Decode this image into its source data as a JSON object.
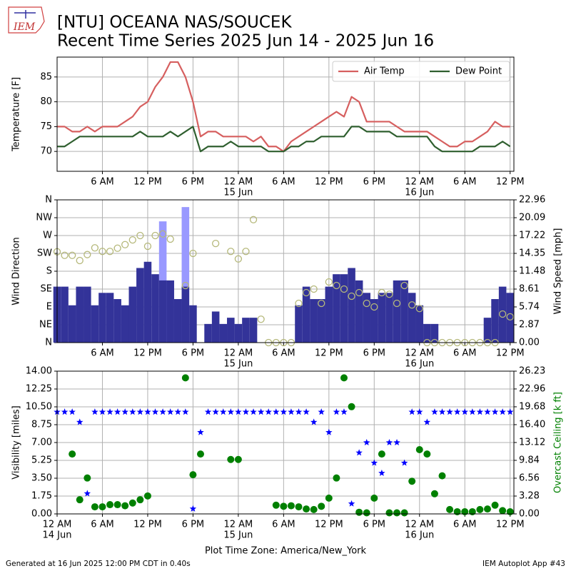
{
  "header": {
    "logo": "IEM",
    "title": "[NTU] OCEANA NAS/SOUCEK",
    "subtitle": "Recent Time Series 2025 Jun 14 - 2025 Jun 16"
  },
  "footer": {
    "left": "Generated at 16 Jun 2025 12:00 PM CDT in 0.40s",
    "right": "IEM Autoplot App #43"
  },
  "chart_data": [
    {
      "type": "line",
      "ylabel": "Temperature [F]",
      "xlim": [
        0,
        60.5
      ],
      "xticks": [
        {
          "value": 6,
          "label": "6 AM"
        },
        {
          "value": 12,
          "label": "12 PM"
        },
        {
          "value": 18,
          "label": "6 PM"
        },
        {
          "value": 24,
          "label": "12 AM",
          "sublabel": "15 Jun"
        },
        {
          "value": 30,
          "label": "6 AM"
        },
        {
          "value": 36,
          "label": "12 PM"
        },
        {
          "value": 42,
          "label": "6 PM"
        },
        {
          "value": 48,
          "label": "12 AM",
          "sublabel": "16 Jun"
        },
        {
          "value": 54,
          "label": "6 AM"
        },
        {
          "value": 60,
          "label": "12 PM"
        }
      ],
      "ylim": [
        66,
        89
      ],
      "yticks": [
        70,
        75,
        80,
        85
      ],
      "grid": true,
      "legend": "upper right",
      "x": [
        0,
        1,
        2,
        3,
        4,
        5,
        6,
        7,
        8,
        9,
        10,
        11,
        12,
        13,
        14,
        15,
        16,
        17,
        18,
        19,
        20,
        21,
        22,
        23,
        24,
        25,
        26,
        27,
        28,
        29,
        30,
        31,
        32,
        33,
        34,
        35,
        36,
        37,
        38,
        39,
        40,
        41,
        42,
        43,
        44,
        45,
        46,
        47,
        48,
        49,
        50,
        51,
        52,
        53,
        54,
        55,
        56,
        57,
        58,
        59,
        60
      ],
      "series": [
        {
          "name": "Air Temp",
          "color": "#d65f5f",
          "kind": "line",
          "values": [
            75,
            75,
            74,
            74,
            75,
            74,
            75,
            75,
            75,
            76,
            77,
            79,
            80,
            83,
            85,
            88,
            88,
            85,
            80,
            73,
            74,
            74,
            73,
            73,
            73,
            73,
            72,
            73,
            71,
            71,
            70,
            72,
            73,
            74,
            75,
            76,
            77,
            78,
            77,
            81,
            80,
            76,
            76,
            76,
            76,
            75,
            74,
            74,
            74,
            74,
            73,
            72,
            71,
            71,
            72,
            72,
            73,
            74,
            76,
            75,
            75
          ]
        },
        {
          "name": "Dew Point",
          "color": "#2f5f2f",
          "kind": "line",
          "values": [
            71,
            71,
            72,
            73,
            73,
            73,
            73,
            73,
            73,
            73,
            73,
            74,
            73,
            73,
            73,
            74,
            73,
            74,
            75,
            70,
            71,
            71,
            71,
            72,
            71,
            71,
            71,
            71,
            70,
            70,
            70,
            71,
            71,
            72,
            72,
            73,
            73,
            73,
            73,
            75,
            75,
            74,
            74,
            74,
            74,
            73,
            73,
            73,
            73,
            73,
            71,
            70,
            70,
            70,
            70,
            70,
            71,
            71,
            71,
            72,
            71
          ]
        }
      ]
    },
    {
      "type": "combo",
      "ylabel": "Wind Direction",
      "y2label": "Wind Speed [mph]",
      "xlim": [
        0,
        60.5
      ],
      "xticks": [
        {
          "value": 6,
          "label": "6 AM"
        },
        {
          "value": 12,
          "label": "12 PM"
        },
        {
          "value": 18,
          "label": "6 PM"
        },
        {
          "value": 24,
          "label": "12 AM",
          "sublabel": "15 Jun"
        },
        {
          "value": 30,
          "label": "6 AM"
        },
        {
          "value": 36,
          "label": "12 PM"
        },
        {
          "value": 42,
          "label": "6 PM"
        },
        {
          "value": 48,
          "label": "12 AM",
          "sublabel": "16 Jun"
        },
        {
          "value": 54,
          "label": "6 AM"
        },
        {
          "value": 60,
          "label": "12 PM"
        }
      ],
      "ylim": [
        0,
        360
      ],
      "yticks": [
        {
          "value": 0,
          "label": "N"
        },
        {
          "value": 45,
          "label": "NE"
        },
        {
          "value": 90,
          "label": "E"
        },
        {
          "value": 135,
          "label": "SE"
        },
        {
          "value": 180,
          "label": "S"
        },
        {
          "value": 225,
          "label": "SW"
        },
        {
          "value": 270,
          "label": "W"
        },
        {
          "value": 315,
          "label": "NW"
        },
        {
          "value": 360,
          "label": "N"
        }
      ],
      "y2lim": [
        0,
        22.96
      ],
      "y2ticks": [
        {
          "value": 0,
          "label": "0.00"
        },
        2.87,
        5.74,
        8.61,
        11.48,
        14.35,
        17.22,
        20.09,
        22.96
      ],
      "grid": true,
      "x": [
        0,
        1,
        2,
        3,
        4,
        5,
        6,
        7,
        8,
        9,
        10,
        11,
        12,
        13,
        14,
        15,
        16,
        17,
        18,
        19,
        20,
        21,
        22,
        23,
        24,
        25,
        26,
        27,
        28,
        29,
        30,
        31,
        32,
        33,
        34,
        35,
        36,
        37,
        38,
        39,
        40,
        41,
        42,
        43,
        44,
        45,
        46,
        47,
        48,
        49,
        50,
        51,
        52,
        53,
        54,
        55,
        56,
        57,
        58,
        59,
        60
      ],
      "series": [
        {
          "color": "#9999ff",
          "kind": "bar",
          "axis": "y2",
          "values": [
            null,
            null,
            null,
            null,
            null,
            null,
            null,
            null,
            null,
            null,
            null,
            null,
            null,
            null,
            19.5,
            null,
            null,
            21.8,
            null,
            null,
            null,
            null,
            null,
            null,
            null,
            null,
            null,
            null,
            null,
            null,
            null,
            null,
            null,
            null,
            null,
            null,
            null,
            null,
            null,
            null,
            null,
            null,
            null,
            null,
            null,
            null,
            null,
            null,
            null,
            null,
            null,
            null,
            null,
            null,
            null,
            null,
            null,
            null,
            null,
            null,
            null
          ]
        },
        {
          "color": "#333399",
          "kind": "bar",
          "axis": "y2",
          "values": [
            9,
            9,
            6,
            9,
            9,
            6,
            8,
            8,
            7,
            6,
            9,
            12,
            13,
            11,
            10,
            10,
            7,
            9,
            6,
            0,
            3,
            5,
            3,
            4,
            3,
            4,
            4,
            0,
            0,
            0,
            0,
            0,
            6,
            9,
            7,
            7,
            9,
            11,
            11,
            12,
            10,
            8,
            7,
            8,
            8,
            10,
            10,
            8,
            6,
            3,
            3,
            0,
            0,
            0,
            0,
            0,
            0,
            4,
            7,
            9,
            8
          ]
        },
        {
          "color": "#b5b87a",
          "kind": "scatter",
          "marker": "circle-open",
          "values": [
            229,
            220,
            220,
            207,
            222,
            239,
            230,
            230,
            238,
            247,
            259,
            270,
            243,
            270,
            274,
            261,
            null,
            144,
            225,
            null,
            null,
            250,
            null,
            230,
            211,
            230,
            310,
            59,
            0,
            0,
            0,
            0,
            99,
            126,
            135,
            99,
            153,
            144,
            135,
            117,
            126,
            99,
            90,
            126,
            122,
            99,
            144,
            95,
            86,
            0,
            0,
            0,
            0,
            0,
            0,
            0,
            0,
            0,
            0,
            72,
            65
          ]
        }
      ]
    },
    {
      "type": "combo",
      "ylabel": "Visibility [miles]",
      "y2label": "Overcast Ceiling [k ft]",
      "xlabel": "Plot Time Zone: America/New_York",
      "xlim": [
        0,
        60.5
      ],
      "xticks": [
        {
          "value": 0,
          "label": "12 AM",
          "sublabel": "14 Jun"
        },
        {
          "value": 6,
          "label": "6 AM"
        },
        {
          "value": 12,
          "label": "12 PM"
        },
        {
          "value": 18,
          "label": "6 PM"
        },
        {
          "value": 24,
          "label": "12 AM",
          "sublabel": "15 Jun"
        },
        {
          "value": 30,
          "label": "6 AM"
        },
        {
          "value": 36,
          "label": "12 PM"
        },
        {
          "value": 42,
          "label": "6 PM"
        },
        {
          "value": 48,
          "label": "12 AM",
          "sublabel": "16 Jun"
        },
        {
          "value": 54,
          "label": "6 AM"
        },
        {
          "value": 60,
          "label": "12 PM"
        }
      ],
      "ylim": [
        0,
        14
      ],
      "yticks": [
        {
          "value": 0,
          "label": "0.00"
        },
        1.75,
        {
          "value": 3.5,
          "label": "3.50"
        },
        5.25,
        {
          "value": 7,
          "label": "7.00"
        },
        8.75,
        {
          "value": 10.5,
          "label": "10.50"
        },
        12.25,
        {
          "value": 14,
          "label": "14.00"
        }
      ],
      "y2lim": [
        0,
        26.23
      ],
      "y2ticks": [
        {
          "value": 0,
          "label": "0.00"
        },
        3.28,
        6.56,
        9.84,
        13.12,
        {
          "value": 16.4,
          "label": "16.40"
        },
        19.68,
        22.96,
        26.23
      ],
      "y2color": "#008000",
      "grid": true,
      "x": [
        0,
        1,
        2,
        3,
        4,
        5,
        6,
        7,
        8,
        9,
        10,
        11,
        12,
        13,
        14,
        15,
        16,
        17,
        18,
        19,
        20,
        21,
        22,
        23,
        24,
        25,
        26,
        27,
        28,
        29,
        30,
        31,
        32,
        33,
        34,
        35,
        36,
        37,
        38,
        39,
        40,
        41,
        42,
        43,
        44,
        45,
        46,
        47,
        48,
        49,
        50,
        51,
        52,
        53,
        54,
        55,
        56,
        57,
        58,
        59,
        60
      ],
      "series": [
        {
          "color": "#0000ff",
          "kind": "scatter",
          "marker": "star",
          "values": [
            10,
            10,
            10,
            9,
            2,
            10,
            10,
            10,
            10,
            10,
            10,
            10,
            10,
            10,
            10,
            10,
            10,
            10,
            0.5,
            8,
            10,
            10,
            10,
            10,
            10,
            10,
            10,
            10,
            10,
            10,
            10,
            10,
            10,
            10,
            9,
            10,
            8,
            10,
            10,
            1,
            6,
            7,
            5,
            4,
            7,
            7,
            5,
            10,
            10,
            9,
            10,
            10,
            10,
            10,
            10,
            10,
            10,
            10,
            10,
            10,
            10
          ]
        },
        {
          "color": "#008000",
          "kind": "scatter",
          "marker": "circle",
          "axis": "y2",
          "values": [
            null,
            null,
            11.0,
            2.6,
            6.6,
            1.3,
            1.3,
            1.7,
            1.7,
            1.5,
            2.0,
            2.6,
            3.3,
            null,
            null,
            null,
            null,
            25.0,
            7.2,
            11.0,
            null,
            null,
            null,
            10.0,
            10.0,
            null,
            null,
            null,
            null,
            1.6,
            1.4,
            1.5,
            1.3,
            0.9,
            0.8,
            1.4,
            2.9,
            6.6,
            25.0,
            19.7,
            0.3,
            0.2,
            2.9,
            11.0,
            0.2,
            0.2,
            0.2,
            6.0,
            11.8,
            11.0,
            3.7,
            7.0,
            0.8,
            0.4,
            0.4,
            0.4,
            0.8,
            0.9,
            1.6,
            0.6,
            0.4
          ]
        }
      ]
    }
  ]
}
